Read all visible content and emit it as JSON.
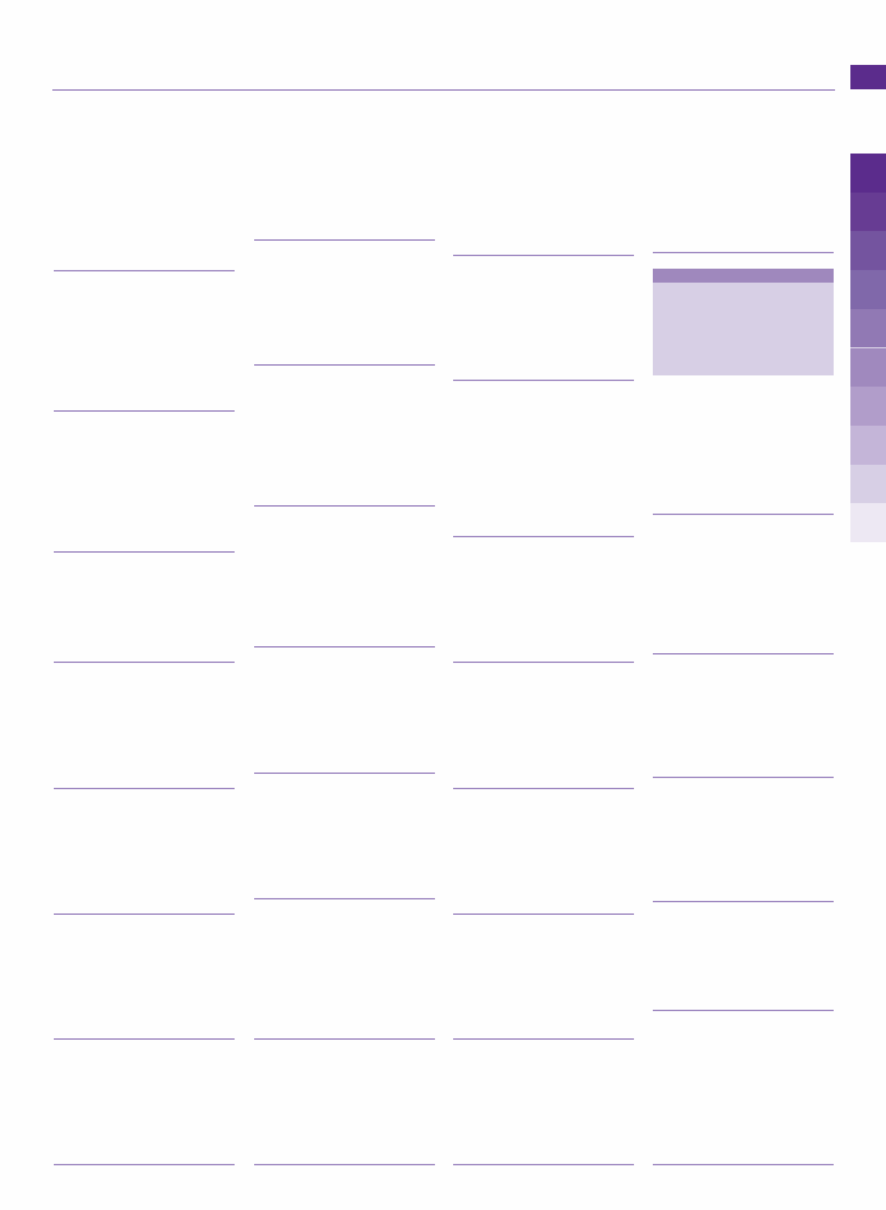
{
  "colors": {
    "rule": "#9d87c0",
    "top_tab": "#5b2c8c",
    "side_tabs": [
      "#5b2c8c",
      "#673c93",
      "#74549f",
      "#8068aa",
      "#9179b4",
      "#a089be",
      "#b19dca",
      "#c4b5d8",
      "#d7cfe5",
      "#ede8f3"
    ],
    "box_header": "#9f88bd",
    "box_body": "#d7cfe5"
  }
}
